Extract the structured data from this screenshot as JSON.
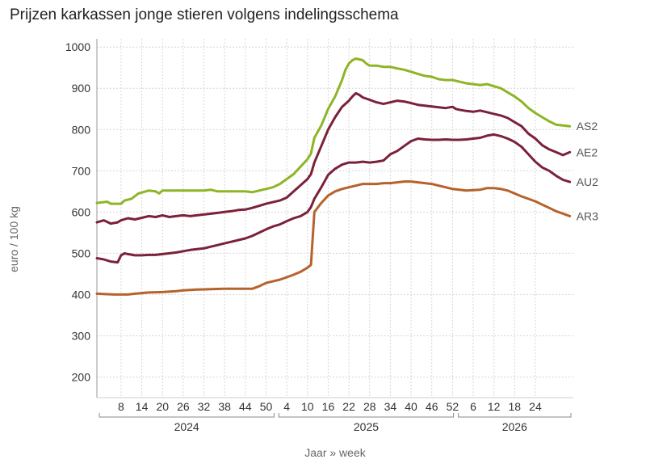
{
  "chart_data": {
    "type": "line",
    "title": "Prijzen karkassen jonge stieren volgens indelingsschema",
    "xlabel": "Jaar » week",
    "ylabel": "euro / 100 kg",
    "ylim": [
      150,
      1020
    ],
    "yticks": [
      200,
      300,
      400,
      500,
      600,
      700,
      800,
      900,
      1000
    ],
    "x_range_weeks": [
      1,
      139
    ],
    "x_week_ticks": [
      {
        "x": 8,
        "label": "8"
      },
      {
        "x": 14,
        "label": "14"
      },
      {
        "x": 20,
        "label": "20"
      },
      {
        "x": 26,
        "label": "26"
      },
      {
        "x": 32,
        "label": "32"
      },
      {
        "x": 38,
        "label": "38"
      },
      {
        "x": 44,
        "label": "44"
      },
      {
        "x": 50,
        "label": "50"
      },
      {
        "x": 56,
        "label": "4"
      },
      {
        "x": 62,
        "label": "10"
      },
      {
        "x": 68,
        "label": "16"
      },
      {
        "x": 74,
        "label": "22"
      },
      {
        "x": 80,
        "label": "28"
      },
      {
        "x": 86,
        "label": "34"
      },
      {
        "x": 92,
        "label": "40"
      },
      {
        "x": 98,
        "label": "46"
      },
      {
        "x": 104,
        "label": "52"
      },
      {
        "x": 110,
        "label": "6"
      },
      {
        "x": 116,
        "label": "12"
      },
      {
        "x": 122,
        "label": "18"
      },
      {
        "x": 128,
        "label": "24"
      }
    ],
    "x_years": [
      {
        "label": "2024",
        "start": 1,
        "end": 53
      },
      {
        "label": "2025",
        "start": 53,
        "end": 105
      },
      {
        "label": "2026",
        "start": 105,
        "end": 139
      }
    ],
    "grid": true,
    "series": [
      {
        "name": "AS2",
        "color": "#8db526",
        "points": [
          [
            1,
            622
          ],
          [
            4,
            625
          ],
          [
            5,
            620
          ],
          [
            8,
            620
          ],
          [
            9,
            628
          ],
          [
            11,
            632
          ],
          [
            13,
            645
          ],
          [
            16,
            652
          ],
          [
            18,
            650
          ],
          [
            19,
            645
          ],
          [
            20,
            652
          ],
          [
            24,
            652
          ],
          [
            32,
            652
          ],
          [
            34,
            654
          ],
          [
            36,
            650
          ],
          [
            44,
            650
          ],
          [
            46,
            648
          ],
          [
            48,
            652
          ],
          [
            50,
            656
          ],
          [
            52,
            660
          ],
          [
            54,
            668
          ],
          [
            56,
            680
          ],
          [
            58,
            692
          ],
          [
            60,
            710
          ],
          [
            62,
            728
          ],
          [
            63,
            742
          ],
          [
            64,
            780
          ],
          [
            66,
            810
          ],
          [
            68,
            850
          ],
          [
            70,
            880
          ],
          [
            72,
            920
          ],
          [
            73,
            945
          ],
          [
            74,
            960
          ],
          [
            75,
            968
          ],
          [
            76,
            972
          ],
          [
            77,
            970
          ],
          [
            78,
            968
          ],
          [
            79,
            960
          ],
          [
            80,
            955
          ],
          [
            82,
            955
          ],
          [
            84,
            952
          ],
          [
            86,
            952
          ],
          [
            88,
            948
          ],
          [
            90,
            945
          ],
          [
            92,
            940
          ],
          [
            94,
            935
          ],
          [
            96,
            930
          ],
          [
            98,
            928
          ],
          [
            100,
            922
          ],
          [
            102,
            920
          ],
          [
            104,
            920
          ],
          [
            106,
            916
          ],
          [
            108,
            912
          ],
          [
            110,
            910
          ],
          [
            112,
            908
          ],
          [
            114,
            910
          ],
          [
            116,
            905
          ],
          [
            118,
            900
          ],
          [
            120,
            890
          ],
          [
            122,
            880
          ],
          [
            124,
            868
          ],
          [
            126,
            852
          ],
          [
            128,
            840
          ],
          [
            130,
            830
          ],
          [
            132,
            820
          ],
          [
            134,
            812
          ],
          [
            136,
            810
          ],
          [
            138,
            808
          ]
        ]
      },
      {
        "name": "AE2",
        "color": "#7b2139",
        "points": [
          [
            1,
            575
          ],
          [
            3,
            580
          ],
          [
            5,
            572
          ],
          [
            7,
            575
          ],
          [
            8,
            580
          ],
          [
            10,
            585
          ],
          [
            12,
            582
          ],
          [
            14,
            586
          ],
          [
            16,
            590
          ],
          [
            18,
            588
          ],
          [
            20,
            592
          ],
          [
            22,
            588
          ],
          [
            24,
            590
          ],
          [
            26,
            592
          ],
          [
            28,
            590
          ],
          [
            30,
            592
          ],
          [
            32,
            594
          ],
          [
            34,
            596
          ],
          [
            36,
            598
          ],
          [
            38,
            600
          ],
          [
            40,
            602
          ],
          [
            42,
            605
          ],
          [
            44,
            606
          ],
          [
            46,
            610
          ],
          [
            48,
            615
          ],
          [
            50,
            620
          ],
          [
            52,
            624
          ],
          [
            54,
            628
          ],
          [
            56,
            635
          ],
          [
            58,
            650
          ],
          [
            60,
            665
          ],
          [
            62,
            680
          ],
          [
            63,
            692
          ],
          [
            64,
            720
          ],
          [
            66,
            760
          ],
          [
            68,
            800
          ],
          [
            70,
            830
          ],
          [
            72,
            855
          ],
          [
            74,
            870
          ],
          [
            75,
            880
          ],
          [
            76,
            888
          ],
          [
            77,
            884
          ],
          [
            78,
            878
          ],
          [
            80,
            872
          ],
          [
            82,
            866
          ],
          [
            84,
            862
          ],
          [
            86,
            866
          ],
          [
            88,
            870
          ],
          [
            90,
            868
          ],
          [
            92,
            864
          ],
          [
            94,
            860
          ],
          [
            96,
            858
          ],
          [
            98,
            856
          ],
          [
            100,
            854
          ],
          [
            102,
            852
          ],
          [
            104,
            855
          ],
          [
            105,
            850
          ],
          [
            106,
            848
          ],
          [
            108,
            845
          ],
          [
            110,
            843
          ],
          [
            112,
            846
          ],
          [
            114,
            842
          ],
          [
            116,
            838
          ],
          [
            118,
            834
          ],
          [
            120,
            828
          ],
          [
            122,
            818
          ],
          [
            124,
            808
          ],
          [
            126,
            790
          ],
          [
            128,
            778
          ],
          [
            130,
            762
          ],
          [
            132,
            752
          ],
          [
            134,
            745
          ],
          [
            136,
            738
          ],
          [
            138,
            745
          ]
        ]
      },
      {
        "name": "AU2",
        "color": "#7b2139",
        "points": [
          [
            1,
            488
          ],
          [
            3,
            485
          ],
          [
            5,
            480
          ],
          [
            7,
            478
          ],
          [
            8,
            495
          ],
          [
            9,
            500
          ],
          [
            10,
            498
          ],
          [
            12,
            495
          ],
          [
            14,
            495
          ],
          [
            16,
            496
          ],
          [
            18,
            496
          ],
          [
            20,
            498
          ],
          [
            22,
            500
          ],
          [
            24,
            502
          ],
          [
            26,
            505
          ],
          [
            28,
            508
          ],
          [
            30,
            510
          ],
          [
            32,
            512
          ],
          [
            34,
            516
          ],
          [
            36,
            520
          ],
          [
            38,
            524
          ],
          [
            40,
            528
          ],
          [
            42,
            532
          ],
          [
            44,
            536
          ],
          [
            46,
            542
          ],
          [
            48,
            550
          ],
          [
            50,
            558
          ],
          [
            52,
            565
          ],
          [
            54,
            570
          ],
          [
            56,
            578
          ],
          [
            58,
            585
          ],
          [
            60,
            590
          ],
          [
            62,
            600
          ],
          [
            63,
            612
          ],
          [
            64,
            632
          ],
          [
            66,
            660
          ],
          [
            68,
            690
          ],
          [
            70,
            705
          ],
          [
            72,
            715
          ],
          [
            74,
            720
          ],
          [
            76,
            720
          ],
          [
            78,
            722
          ],
          [
            80,
            720
          ],
          [
            82,
            722
          ],
          [
            84,
            725
          ],
          [
            86,
            740
          ],
          [
            88,
            748
          ],
          [
            90,
            760
          ],
          [
            92,
            772
          ],
          [
            94,
            778
          ],
          [
            96,
            776
          ],
          [
            98,
            775
          ],
          [
            100,
            775
          ],
          [
            102,
            776
          ],
          [
            104,
            775
          ],
          [
            106,
            775
          ],
          [
            108,
            776
          ],
          [
            110,
            778
          ],
          [
            112,
            780
          ],
          [
            114,
            785
          ],
          [
            116,
            788
          ],
          [
            118,
            784
          ],
          [
            120,
            778
          ],
          [
            122,
            770
          ],
          [
            124,
            758
          ],
          [
            126,
            740
          ],
          [
            128,
            722
          ],
          [
            130,
            708
          ],
          [
            132,
            700
          ],
          [
            134,
            688
          ],
          [
            136,
            678
          ],
          [
            138,
            673
          ]
        ]
      },
      {
        "name": "AR3",
        "color": "#b5622b",
        "points": [
          [
            1,
            402
          ],
          [
            6,
            400
          ],
          [
            10,
            400
          ],
          [
            12,
            402
          ],
          [
            16,
            405
          ],
          [
            20,
            406
          ],
          [
            24,
            408
          ],
          [
            26,
            410
          ],
          [
            30,
            412
          ],
          [
            34,
            413
          ],
          [
            38,
            414
          ],
          [
            46,
            414
          ],
          [
            48,
            420
          ],
          [
            50,
            428
          ],
          [
            52,
            432
          ],
          [
            54,
            436
          ],
          [
            56,
            442
          ],
          [
            58,
            448
          ],
          [
            60,
            455
          ],
          [
            62,
            465
          ],
          [
            63,
            472
          ],
          [
            64,
            600
          ],
          [
            66,
            622
          ],
          [
            68,
            640
          ],
          [
            70,
            650
          ],
          [
            72,
            656
          ],
          [
            74,
            660
          ],
          [
            76,
            664
          ],
          [
            78,
            668
          ],
          [
            80,
            668
          ],
          [
            82,
            668
          ],
          [
            84,
            670
          ],
          [
            86,
            670
          ],
          [
            88,
            672
          ],
          [
            90,
            674
          ],
          [
            92,
            674
          ],
          [
            94,
            672
          ],
          [
            96,
            670
          ],
          [
            98,
            668
          ],
          [
            100,
            664
          ],
          [
            102,
            660
          ],
          [
            104,
            656
          ],
          [
            106,
            654
          ],
          [
            108,
            652
          ],
          [
            110,
            653
          ],
          [
            112,
            654
          ],
          [
            114,
            658
          ],
          [
            116,
            658
          ],
          [
            118,
            656
          ],
          [
            120,
            652
          ],
          [
            122,
            645
          ],
          [
            124,
            638
          ],
          [
            126,
            632
          ],
          [
            128,
            626
          ],
          [
            130,
            618
          ],
          [
            132,
            610
          ],
          [
            134,
            602
          ],
          [
            136,
            596
          ],
          [
            138,
            590
          ]
        ]
      }
    ]
  }
}
